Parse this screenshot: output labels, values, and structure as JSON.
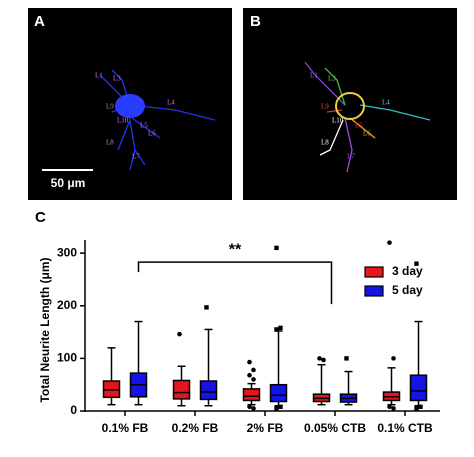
{
  "panels": [
    {
      "label": "A",
      "scale_bar": "50 μm",
      "neuron_labels": [
        "L1",
        "L3",
        "L9",
        "L4",
        "L10",
        "L5",
        "L6",
        "L8",
        "L7"
      ]
    },
    {
      "label": "B",
      "neuron_labels": [
        "L1",
        "L3",
        "L9",
        "L4",
        "L10",
        "L5",
        "L6",
        "L8",
        "L7"
      ]
    }
  ],
  "chart_data": {
    "type": "box",
    "panel_label": "C",
    "y_label": "Total Neurite Length (μm)",
    "categories": [
      "0.1% FB",
      "0.2% FB",
      "2% FB",
      "0.05% CTB",
      "0.1% CTB"
    ],
    "ylim": [
      0,
      325
    ],
    "yticks": [
      0,
      100,
      200,
      300
    ],
    "series": [
      {
        "name": "3 day",
        "color": "#e8141b",
        "boxes": [
          {
            "whislo": 12,
            "q1": 26,
            "med": 40,
            "q3": 57,
            "whishi": 120,
            "fliers": []
          },
          {
            "whislo": 10,
            "q1": 23,
            "med": 35,
            "q3": 58,
            "whishi": 85,
            "fliers": [
              146
            ]
          },
          {
            "whislo": 12,
            "q1": 20,
            "med": 28,
            "q3": 42,
            "whishi": 52,
            "fliers": [
              93,
              78,
              68,
              60,
              8,
              5
            ]
          },
          {
            "whislo": 12,
            "q1": 18,
            "med": 24,
            "q3": 32,
            "whishi": 88,
            "fliers": [
              100,
              97
            ]
          },
          {
            "whislo": 12,
            "q1": 20,
            "med": 27,
            "q3": 36,
            "whishi": 82,
            "fliers": [
              320,
              100,
              8,
              5
            ]
          }
        ]
      },
      {
        "name": "5 day",
        "color": "#1414e6",
        "boxes": [
          {
            "whislo": 12,
            "q1": 27,
            "med": 50,
            "q3": 72,
            "whishi": 170,
            "fliers": []
          },
          {
            "whislo": 10,
            "q1": 22,
            "med": 36,
            "q3": 57,
            "whishi": 155,
            "fliers": [
              197
            ]
          },
          {
            "whislo": 10,
            "q1": 18,
            "med": 30,
            "q3": 50,
            "whishi": 152,
            "fliers": [
              310,
              158,
              155,
              8,
              5
            ]
          },
          {
            "whislo": 12,
            "q1": 17,
            "med": 24,
            "q3": 32,
            "whishi": 75,
            "fliers": [
              100
            ]
          },
          {
            "whislo": 10,
            "q1": 20,
            "med": 38,
            "q3": 68,
            "whishi": 170,
            "fliers": [
              280,
              8,
              5
            ]
          }
        ]
      }
    ],
    "annotation": {
      "text": "**",
      "y": 283,
      "from_category": 0,
      "from_series": 1,
      "to_category": 3,
      "to_series": 0
    }
  }
}
